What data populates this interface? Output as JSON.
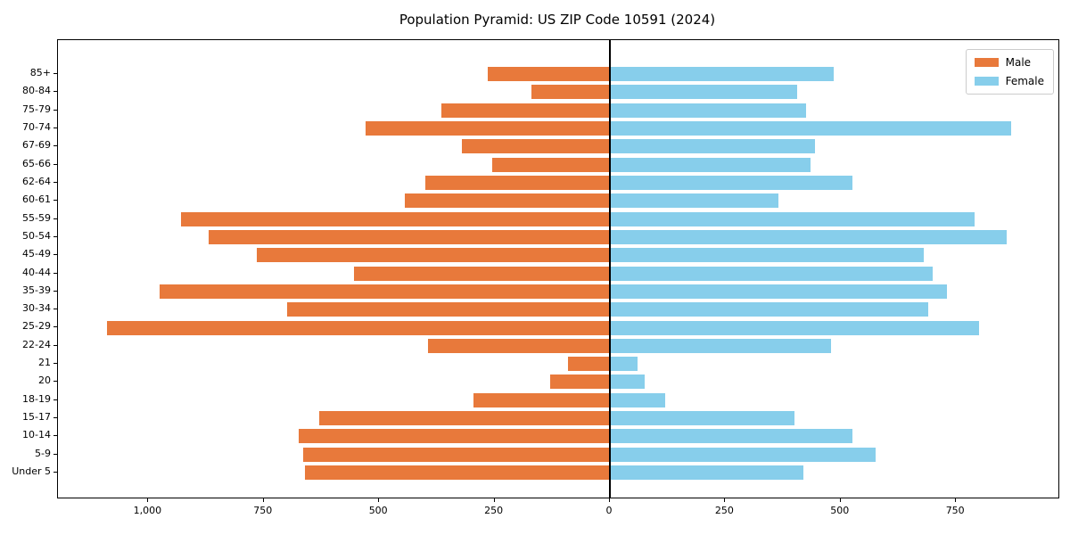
{
  "title": "Population Pyramid: US ZIP Code 10591 (2024)",
  "legend": {
    "male_label": "Male",
    "female_label": "Female",
    "position": "upper right"
  },
  "colors": {
    "male": "#e8793b",
    "female": "#87ceeb",
    "axis": "#000000",
    "legend_border": "#cccccc",
    "background": "#ffffff"
  },
  "x_axis": {
    "tick_values": [
      -1000,
      -750,
      -500,
      -250,
      0,
      250,
      500,
      750
    ],
    "tick_labels": [
      "1,000",
      "750",
      "500",
      "250",
      "0",
      "250",
      "500",
      "750"
    ]
  },
  "chart_data": {
    "type": "bar",
    "subtype": "population-pyramid",
    "orientation": "horizontal",
    "title": "Population Pyramid: US ZIP Code 10591 (2024)",
    "xlabel": "",
    "ylabel": "",
    "grid": false,
    "xlim": [
      -1195,
      970
    ],
    "legend_position": "upper right",
    "categories": [
      "85+",
      "80-84",
      "75-79",
      "70-74",
      "67-69",
      "65-66",
      "62-64",
      "60-61",
      "55-59",
      "50-54",
      "45-49",
      "40-44",
      "35-39",
      "30-34",
      "25-29",
      "22-24",
      "21",
      "20",
      "18-19",
      "15-17",
      "10-14",
      "5-9",
      "Under 5"
    ],
    "series": [
      {
        "name": "Male",
        "color": "#e8793b",
        "direction": "left",
        "values": [
          265,
          170,
          365,
          530,
          320,
          255,
          400,
          445,
          930,
          870,
          765,
          555,
          975,
          700,
          1090,
          395,
          90,
          130,
          295,
          630,
          675,
          665,
          660
        ]
      },
      {
        "name": "Female",
        "color": "#87ceeb",
        "direction": "right",
        "values": [
          485,
          405,
          425,
          870,
          445,
          435,
          525,
          365,
          790,
          860,
          680,
          700,
          730,
          690,
          800,
          480,
          60,
          75,
          120,
          400,
          525,
          575,
          420
        ]
      }
    ]
  }
}
